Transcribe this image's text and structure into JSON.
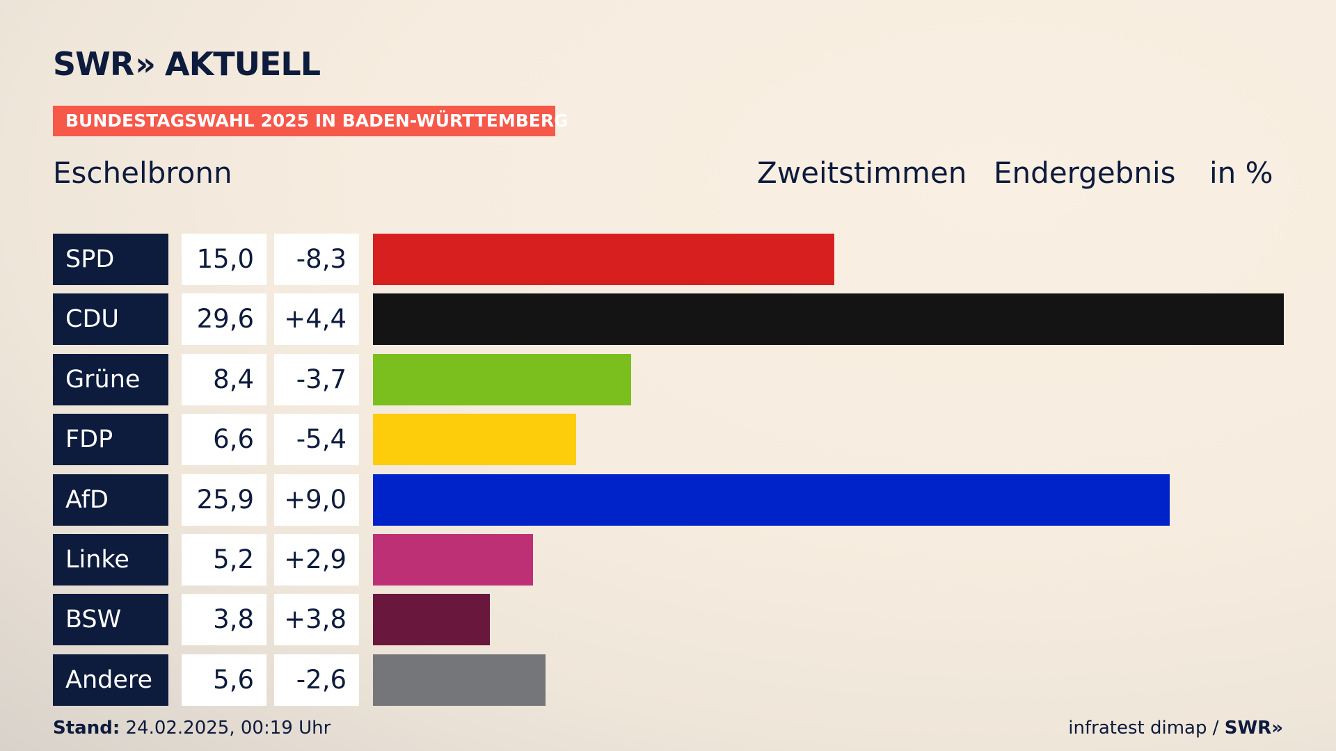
{
  "header": {
    "logo_brand": "SWR",
    "logo_chevrons": "»",
    "logo_product": "AKTUELL",
    "tagline": "BUNDESTAGSWAHL 2025 IN BADEN-WÜRTTEMBERG",
    "tagline_color": "#f6584a"
  },
  "subtitle": {
    "location": "Eschelbronn",
    "vote_type": "Zweitstimmen",
    "status": "Endergebnis",
    "unit": "in %"
  },
  "chart_data": {
    "type": "bar",
    "orientation": "horizontal",
    "categories": [
      "SPD",
      "CDU",
      "Grüne",
      "FDP",
      "AfD",
      "Linke",
      "BSW",
      "Andere"
    ],
    "values": [
      15.0,
      29.6,
      8.4,
      6.6,
      25.9,
      5.2,
      3.8,
      5.6
    ],
    "value_labels": [
      "15,0",
      "29,6",
      "8,4",
      "6,6",
      "25,9",
      "5,2",
      "3,8",
      "5,6"
    ],
    "changes": [
      -8.3,
      4.4,
      -3.7,
      -5.4,
      9.0,
      2.9,
      3.8,
      -2.6
    ],
    "change_labels": [
      "-8,3",
      "+4,4",
      "-3,7",
      "-5,4",
      "+9,0",
      "+2,9",
      "+3,8",
      "-2,6"
    ],
    "colors": [
      "#d81f20",
      "#141414",
      "#7abf1d",
      "#fdcc0b",
      "#0022c9",
      "#bd3075",
      "#6a173d",
      "#757679"
    ],
    "xlim": [
      0,
      29.6
    ],
    "grid": false,
    "legend": "none"
  },
  "footer": {
    "stand_label": "Stand:",
    "stand_value": "24.02.2025, 00:19 Uhr",
    "source": "infratest dimap /",
    "source_brand": "SWR»"
  }
}
